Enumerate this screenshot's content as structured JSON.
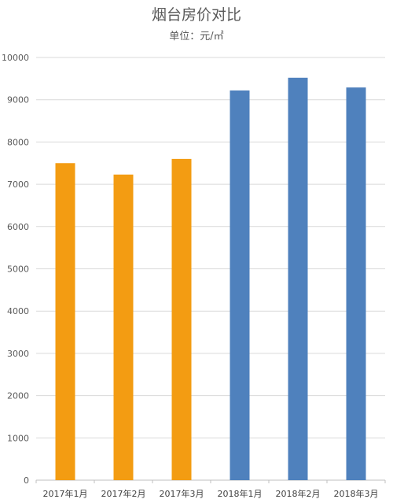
{
  "chart_data": {
    "type": "bar",
    "title": "烟台房价对比",
    "subtitle": "单位：元/㎡",
    "xlabel": "",
    "ylabel": "",
    "categories": [
      "2017年1月",
      "2017年2月",
      "2017年3月",
      "2018年1月",
      "2018年2月",
      "2018年3月"
    ],
    "values": [
      7500,
      7230,
      7600,
      9220,
      9520,
      9290
    ],
    "bar_colors": [
      "#F39C12",
      "#F39C12",
      "#F39C12",
      "#4F81BD",
      "#4F81BD",
      "#4F81BD"
    ],
    "ylim": [
      0,
      10000
    ],
    "yticks": [
      0,
      1000,
      2000,
      3000,
      4000,
      5000,
      6000,
      7000,
      8000,
      9000,
      10000
    ],
    "grid": true,
    "legend": "none"
  }
}
